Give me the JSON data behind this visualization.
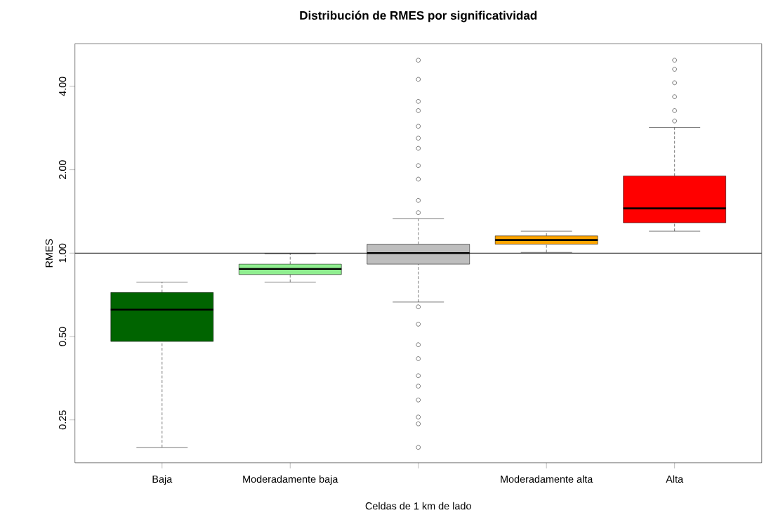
{
  "chart_data": {
    "type": "box",
    "title": "Distribución de RMES por significatividad",
    "xlabel": "Celdas de 1 km de lado",
    "ylabel": "RMES",
    "categories": [
      "Baja",
      "Moderadamente baja",
      null,
      "Moderadamente alta",
      "Alta"
    ],
    "colors": [
      "#006400",
      "#90ee90",
      "#bebebe",
      "#ffa500",
      "#ff0000"
    ],
    "log": "y",
    "ylim": [
      0.175,
      5.7
    ],
    "yticks": [
      {
        "value": 0.25,
        "label": "0.25"
      },
      {
        "value": 0.5,
        "label": "0.50"
      },
      {
        "value": 1,
        "label": "1.00"
      },
      {
        "value": 2,
        "label": "2.00"
      },
      {
        "value": 4,
        "label": "4.00"
      }
    ],
    "boxes": [
      {
        "low": 0.199,
        "q1": 0.48,
        "median": 0.625,
        "q3": 0.721,
        "high": 0.786
      },
      {
        "low": 0.786,
        "q1": 0.837,
        "median": 0.877,
        "q3": 0.912,
        "high": 0.995
      },
      {
        "low": 0.666,
        "q1": 0.912,
        "median": 1.0,
        "q3": 1.077,
        "high": 1.33,
        "outliers": [
          4.97,
          4.24,
          3.53,
          3.27,
          2.87,
          2.6,
          2.39,
          2.07,
          1.85,
          1.55,
          1.4,
          0.64,
          0.554,
          0.467,
          0.416,
          0.361,
          0.331,
          0.295,
          0.256,
          0.242,
          0.199
        ]
      },
      {
        "low": 1.006,
        "q1": 1.077,
        "median": 1.115,
        "q3": 1.154,
        "high": 1.2
      },
      {
        "low": 1.2,
        "q1": 1.287,
        "median": 1.451,
        "q3": 1.9,
        "high": 2.84,
        "outliers": [
          4.97,
          4.61,
          4.12,
          3.67,
          3.27,
          3.0
        ]
      }
    ],
    "ref_lines": [
      {
        "axis": "y",
        "value": 1
      }
    ]
  }
}
